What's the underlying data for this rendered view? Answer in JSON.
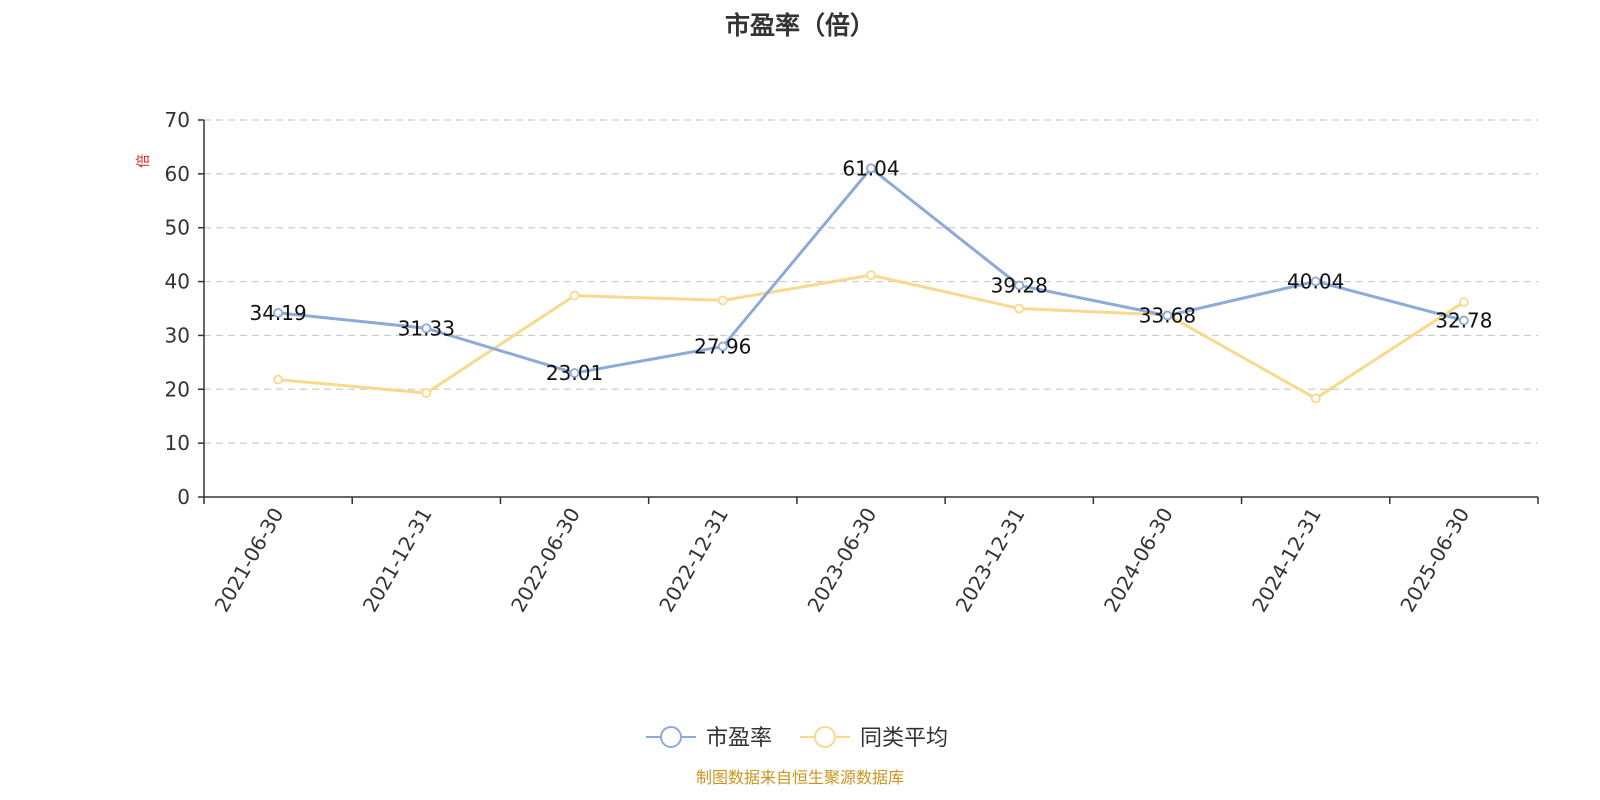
{
  "chart_data": {
    "type": "line",
    "title": "市盈率（倍）",
    "ylabel": "倍",
    "ylim": [
      0,
      70
    ],
    "yticks": [
      0,
      10,
      20,
      30,
      40,
      50,
      60,
      70
    ],
    "grid": true,
    "legend_position": "bottom",
    "categories": [
      "2021-06-30",
      "2021-12-31",
      "2022-06-30",
      "2022-12-31",
      "2023-06-30",
      "2023-12-31",
      "2024-06-30",
      "2024-12-31",
      "2025-06-30"
    ],
    "series": [
      {
        "name": "市盈率",
        "color": "#8eaad8",
        "values": [
          34.19,
          31.33,
          23.01,
          27.96,
          61.04,
          39.28,
          33.68,
          40.04,
          32.78
        ],
        "labels": [
          "34.19",
          "31.33",
          "23.01",
          "27.96",
          "61.04",
          "39.28",
          "33.68",
          "40.04",
          "32.78"
        ]
      },
      {
        "name": "同类平均",
        "color": "#fad98e",
        "values": [
          21.8,
          19.3,
          37.4,
          36.5,
          41.2,
          35.0,
          33.8,
          18.3,
          36.2
        ]
      }
    ]
  },
  "source": "制图数据来自恒生聚源数据库",
  "colors": {
    "unit_label": "#e02020",
    "axis": "#333333",
    "grid": "#cccccc"
  }
}
